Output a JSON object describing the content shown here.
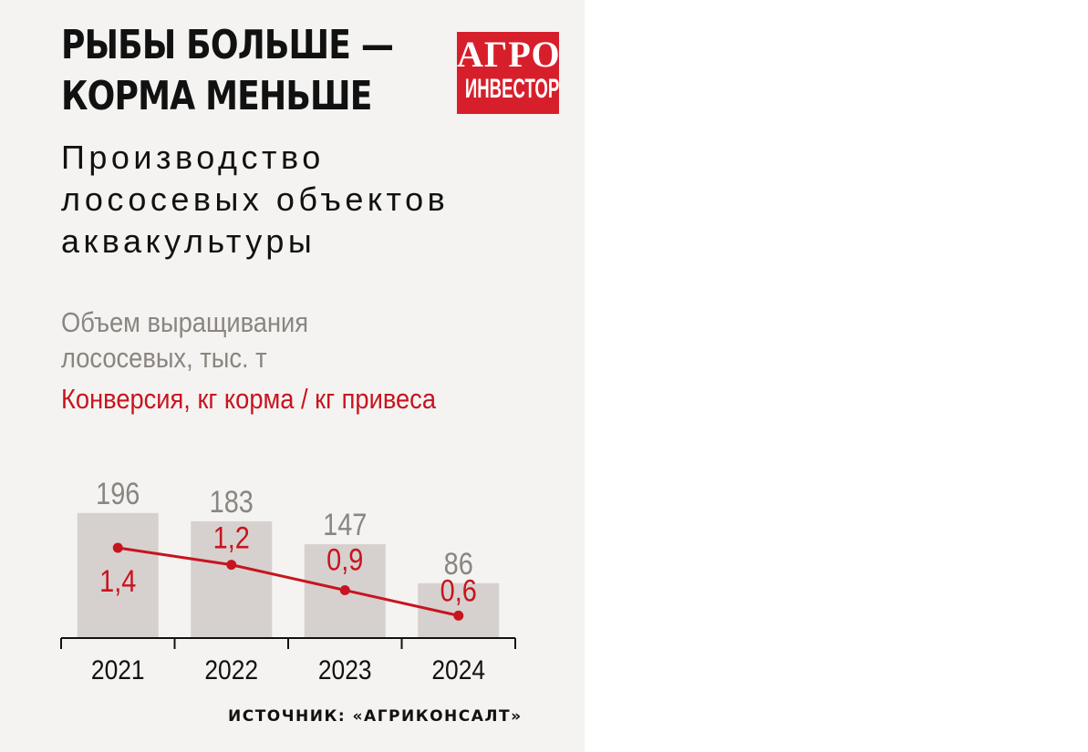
{
  "headline": [
    "РЫБЫ БОЛЬШЕ —",
    "КОРМА МЕНЬШЕ"
  ],
  "logo": {
    "line1": "АГРО",
    "line2": "ИНВЕСТОР"
  },
  "source": "ИСТОЧНИК: «АГРИКОНСАЛТ»",
  "colors": {
    "panel": "#f4f3f1",
    "bar": "#d6d1ce",
    "bar_label": "#8a8580",
    "line": "#c8141f",
    "logo": "#d71f2b"
  },
  "chart_data": {
    "type": "bar",
    "title": "Производство лососевых объектов аквакультуры",
    "title_lines": [
      "Производство",
      "лососевых объектов",
      "аквакультуры"
    ],
    "categories": [
      "2021",
      "2022",
      "2023",
      "2024"
    ],
    "series": [
      {
        "name": "Объем выращивания лососевых, тыс. т",
        "name_lines": [
          "Объем выращивания",
          "лососевых, тыс. т"
        ],
        "type": "bar",
        "values": [
          196,
          183,
          147,
          86
        ],
        "labels": [
          "196",
          "183",
          "147",
          "86"
        ]
      },
      {
        "name": "Конверсия, кг корма / кг привеса",
        "type": "line",
        "values": [
          1.4,
          1.2,
          0.9,
          0.6
        ],
        "labels": [
          "1,4",
          "1,2",
          "0,9",
          "0,6"
        ]
      }
    ],
    "grid": false,
    "legend": "top-left"
  }
}
